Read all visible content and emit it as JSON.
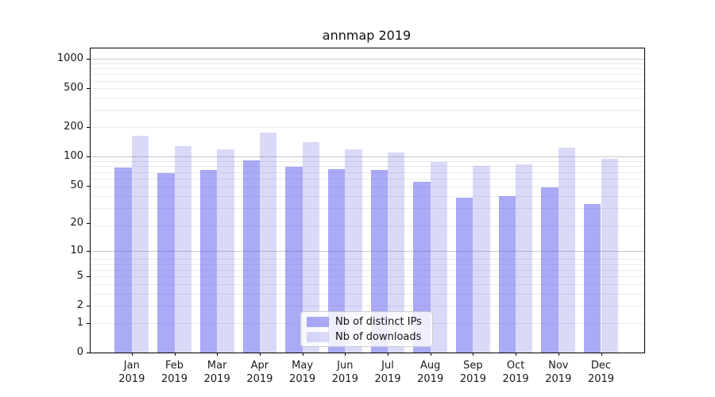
{
  "chart_data": {
    "type": "bar",
    "title": "annmap 2019",
    "year_label": "2019",
    "categories": [
      "Jan",
      "Feb",
      "Mar",
      "Apr",
      "May",
      "Jun",
      "Jul",
      "Aug",
      "Sep",
      "Oct",
      "Nov",
      "Dec"
    ],
    "series": [
      {
        "name": "Nb of distinct IPs",
        "color": "rgba(86,86,237,0.50)",
        "values": [
          77,
          67,
          73,
          91,
          78,
          74,
          73,
          54,
          37,
          39,
          48,
          32
        ]
      },
      {
        "name": "Nb of downloads",
        "color": "rgba(86,86,225,0.22)",
        "values": [
          163,
          127,
          119,
          176,
          140,
          118,
          109,
          87,
          80,
          83,
          123,
          94
        ]
      }
    ],
    "yscale": "log1p",
    "yticks": [
      1000,
      500,
      200,
      100,
      50,
      20,
      10,
      5,
      2,
      1,
      0
    ],
    "major_grid_ticks": [
      10,
      100,
      1000
    ],
    "ylim": [
      0,
      1500
    ],
    "grid": true,
    "legend_position": "lower center",
    "colors": {
      "distinct_ips_rendered": "#aaaaf6",
      "downloads_rendered": "#dadaf8",
      "grid_major": "#c8c8c8",
      "grid_minor": "#ebebeb",
      "axis": "#000000",
      "background": "#ffffff"
    }
  }
}
